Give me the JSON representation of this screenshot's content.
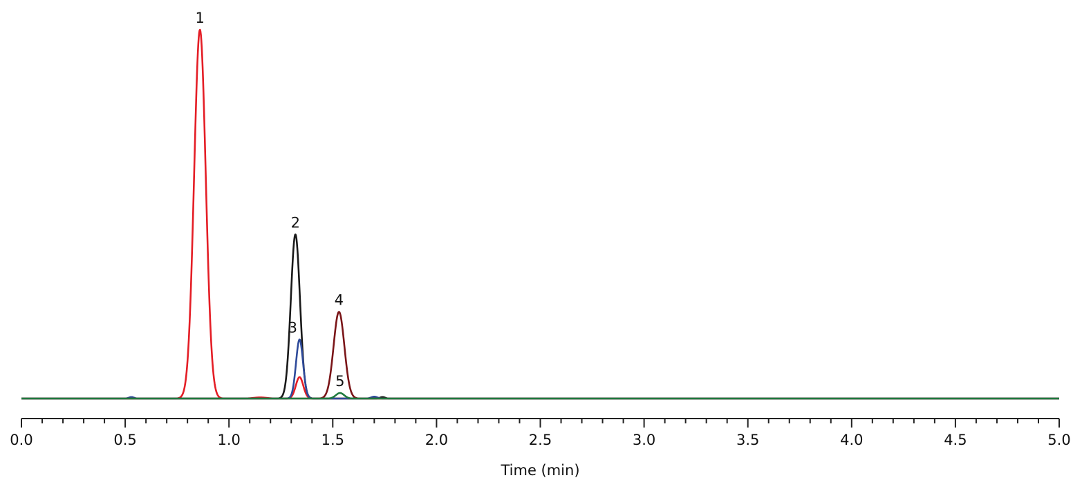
{
  "chart_data": {
    "type": "line",
    "title": "",
    "xlabel": "Time (min)",
    "ylabel": "",
    "xlim": [
      0.0,
      5.0
    ],
    "ylim": [
      0,
      100
    ],
    "y_axis_visible": false,
    "grid": false,
    "x_major_ticks": [
      0.0,
      0.5,
      1.0,
      1.5,
      2.0,
      2.5,
      3.0,
      3.5,
      4.0,
      4.5,
      5.0
    ],
    "x_tick_labels": [
      "0.0",
      "0.5",
      "1.0",
      "1.5",
      "2.0",
      "2.5",
      "3.0",
      "3.5",
      "4.0",
      "4.5",
      "5.0"
    ],
    "x_minor_step": 0.1,
    "series": [
      {
        "color": "#e41e26",
        "peaks": [
          {
            "rt": 0.86,
            "height": 100,
            "sigma": 0.028
          },
          {
            "rt": 1.34,
            "height": 5.8,
            "sigma": 0.018
          },
          {
            "rt": 1.15,
            "height": 0.3,
            "sigma": 0.03
          }
        ]
      },
      {
        "color": "#1a1a1a",
        "peaks": [
          {
            "rt": 1.32,
            "height": 44.5,
            "sigma": 0.022
          },
          {
            "rt": 1.74,
            "height": 0.4,
            "sigma": 0.012
          }
        ]
      },
      {
        "color": "#2e4a9a",
        "peaks": [
          {
            "rt": 1.34,
            "height": 16.0,
            "sigma": 0.017
          },
          {
            "rt": 0.53,
            "height": 0.4,
            "sigma": 0.012
          },
          {
            "rt": 1.7,
            "height": 0.5,
            "sigma": 0.015
          }
        ]
      },
      {
        "color": "#7a1518",
        "peaks": [
          {
            "rt": 1.53,
            "height": 23.5,
            "sigma": 0.026
          }
        ]
      },
      {
        "color": "#1f7a3e",
        "peaks": [
          {
            "rt": 1.535,
            "height": 1.5,
            "sigma": 0.02
          }
        ]
      }
    ],
    "peak_labels": [
      {
        "text": "1",
        "x": 0.86,
        "y": 100
      },
      {
        "text": "2",
        "x": 1.32,
        "y": 44.5
      },
      {
        "text": "3",
        "x": 1.32,
        "y": 16.0
      },
      {
        "text": "4",
        "x": 1.53,
        "y": 23.5
      },
      {
        "text": "5",
        "x": 1.535,
        "y": 1.5
      }
    ]
  }
}
